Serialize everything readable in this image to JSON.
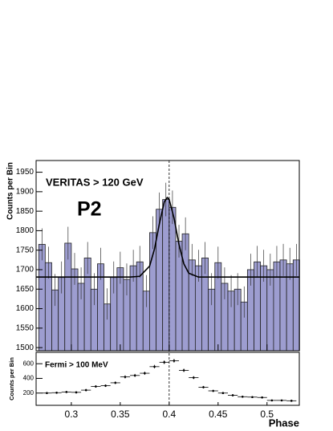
{
  "chart_data": [
    {
      "type": "histogram",
      "title": "VERITAS > 120 GeV",
      "annotation": "P2",
      "y_label": "Counts per Bin",
      "bins": [
        0.2667,
        0.2733,
        0.28,
        0.2867,
        0.2933,
        0.3,
        0.3067,
        0.3133,
        0.32,
        0.3267,
        0.3333,
        0.34,
        0.3467,
        0.3533,
        0.36,
        0.3667,
        0.3733,
        0.38,
        0.3867,
        0.3933,
        0.4,
        0.4067,
        0.4133,
        0.42,
        0.4267,
        0.4333,
        0.44,
        0.4467,
        0.4533,
        0.46,
        0.4667,
        0.4733,
        0.48,
        0.4867,
        0.4933,
        0.5,
        0.5067,
        0.5133,
        0.52,
        0.5267,
        0.5333
      ],
      "counts": [
        1765,
        1718,
        1648,
        1680,
        1768,
        1702,
        1665,
        1730,
        1650,
        1715,
        1612,
        1680,
        1705,
        1675,
        1710,
        1720,
        1645,
        1795,
        1855,
        1880,
        1860,
        1773,
        1792,
        1725,
        1710,
        1730,
        1650,
        1718,
        1665,
        1645,
        1650,
        1617,
        1700,
        1720,
        1710,
        1700,
        1720,
        1725,
        1715,
        1725
      ],
      "errors": [
        41,
        41,
        41,
        41,
        42,
        41,
        41,
        41,
        41,
        41,
        40,
        41,
        41,
        41,
        41,
        41,
        41,
        42,
        43,
        43,
        43,
        42,
        42,
        41,
        41,
        41,
        41,
        41,
        41,
        41,
        41,
        40,
        41,
        41,
        41,
        41,
        41,
        41,
        41,
        41
      ],
      "color": "#9d9dd0",
      "fit": {
        "x": [
          0.264,
          0.36,
          0.37,
          0.38,
          0.385,
          0.39,
          0.395,
          0.398,
          0.4,
          0.405,
          0.41,
          0.415,
          0.42,
          0.43,
          0.533
        ],
        "values": [
          1681,
          1681,
          1683,
          1709,
          1753,
          1818,
          1874,
          1885,
          1880,
          1832,
          1765,
          1715,
          1691,
          1681,
          1681
        ]
      },
      "vline": 0.4,
      "xlim": [
        0.264,
        0.533
      ],
      "xticks": [
        0.3,
        0.35,
        0.4,
        0.45,
        0.5
      ],
      "ylim": [
        1492,
        1980
      ],
      "yticks": [
        1500,
        1550,
        1600,
        1650,
        1700,
        1750,
        1800,
        1850,
        1900,
        1950
      ]
    },
    {
      "type": "scatter",
      "title": "Fermi > 100 MeV",
      "y_label": "Counts per Bin",
      "x_label": "Phase",
      "x": [
        0.275,
        0.285,
        0.295,
        0.305,
        0.315,
        0.325,
        0.335,
        0.345,
        0.355,
        0.365,
        0.375,
        0.385,
        0.395,
        0.405,
        0.415,
        0.425,
        0.435,
        0.445,
        0.455,
        0.465,
        0.475,
        0.485,
        0.495,
        0.505,
        0.515,
        0.525
      ],
      "values": [
        200,
        205,
        215,
        210,
        240,
        290,
        300,
        340,
        420,
        440,
        470,
        560,
        620,
        640,
        510,
        410,
        280,
        230,
        200,
        170,
        150,
        145,
        140,
        100,
        100,
        95
      ],
      "xerr": 0.005,
      "yerr": [
        14,
        14,
        15,
        15,
        16,
        17,
        17,
        18,
        20,
        21,
        22,
        24,
        25,
        25,
        23,
        20,
        17,
        15,
        14,
        13,
        12,
        12,
        12,
        10,
        10,
        10
      ],
      "xlim": [
        0.264,
        0.533
      ],
      "xticks": [
        0.3,
        0.35,
        0.4,
        0.45,
        0.5
      ],
      "ylim": [
        33,
        755
      ],
      "yticks": [
        200,
        400,
        600
      ]
    }
  ]
}
